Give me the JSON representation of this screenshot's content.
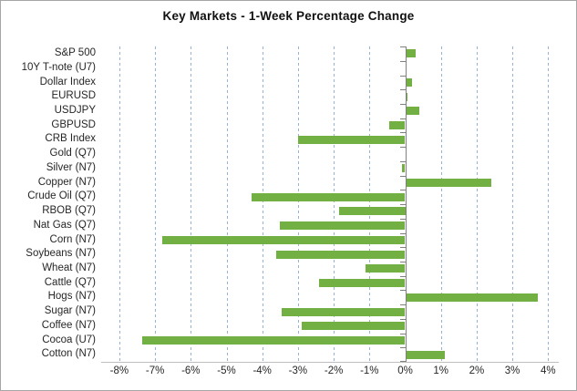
{
  "chart_data": {
    "type": "bar",
    "orientation": "horizontal",
    "title": "Key Markets - 1-Week Percentage Change",
    "xlabel": "",
    "ylabel": "",
    "categories": [
      "S&P 500",
      "10Y T-note (U7)",
      "Dollar Index",
      "EURUSD",
      "USDJPY",
      "GBPUSD",
      "CRB Index",
      "Gold (Q7)",
      "Silver (N7)",
      "Copper (N7)",
      "Crude Oil (Q7)",
      "RBOB (Q7)",
      "Nat Gas (Q7)",
      "Corn (N7)",
      "Soybeans (N7)",
      "Wheat (N7)",
      "Cattle (Q7)",
      "Hogs (N7)",
      "Sugar (N7)",
      "Coffee (N7)",
      "Cocoa (U7)",
      "Cotton (N7)"
    ],
    "values": [
      0.3,
      0.0,
      0.2,
      0.05,
      0.4,
      -0.45,
      -3.0,
      0.0,
      -0.1,
      2.4,
      -4.3,
      -1.85,
      -3.5,
      -6.8,
      -3.6,
      -1.1,
      -2.4,
      3.7,
      -3.45,
      -2.9,
      -7.35,
      1.1
    ],
    "value_unit": "%",
    "x_tick_labels": [
      "-8%",
      "-7%",
      "-6%",
      "-5%",
      "-4%",
      "-3%",
      "-2%",
      "-1%",
      "0%",
      "1%",
      "2%",
      "3%",
      "4%"
    ],
    "x_tick_values": [
      -8,
      -7,
      -6,
      -5,
      -4,
      -3,
      -2,
      -1,
      0,
      1,
      2,
      3,
      4
    ],
    "xlim": [
      -8.5,
      4.3
    ],
    "grid": "vertical-dashed",
    "legend": "none",
    "colors": {
      "bar": "#73B044",
      "gridline": "#95B3D7",
      "zero_axis": "#808080",
      "baseline": "#BFBFBF",
      "text": "#262626",
      "title_text": "#111111",
      "border": "#A6A6A6",
      "background": "#FFFFFF"
    }
  }
}
